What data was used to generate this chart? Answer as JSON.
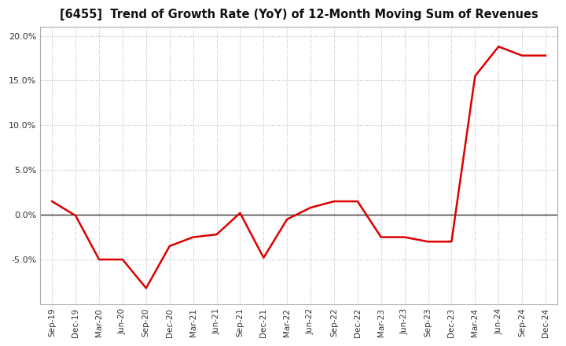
{
  "title": "[6455]  Trend of Growth Rate (YoY) of 12-Month Moving Sum of Revenues",
  "line_color": "#dd0000",
  "background_color": "#ffffff",
  "grid_color": "#bbbbbb",
  "ylim": [
    -10.0,
    21.0
  ],
  "yticks": [
    -5.0,
    0.0,
    5.0,
    10.0,
    15.0,
    20.0
  ],
  "x_labels": [
    "Sep-19",
    "Dec-19",
    "Mar-20",
    "Jun-20",
    "Sep-20",
    "Dec-20",
    "Mar-21",
    "Jun-21",
    "Sep-21",
    "Dec-21",
    "Mar-22",
    "Jun-22",
    "Sep-22",
    "Dec-22",
    "Mar-23",
    "Jun-23",
    "Sep-23",
    "Dec-23",
    "Mar-24",
    "Jun-24",
    "Sep-24",
    "Dec-24"
  ],
  "y_values": [
    1.5,
    -0.1,
    -5.0,
    -5.0,
    -8.2,
    -3.5,
    -2.5,
    -2.2,
    0.2,
    -4.8,
    -0.5,
    0.8,
    1.5,
    1.5,
    -2.5,
    -2.5,
    -3.0,
    -3.0,
    15.5,
    18.8,
    17.8,
    17.8
  ]
}
